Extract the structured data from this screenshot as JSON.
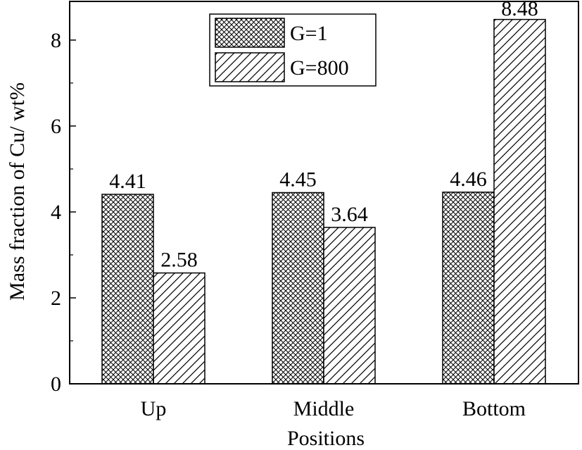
{
  "chart_data": {
    "type": "bar",
    "categories": [
      "Up",
      "Middle",
      "Bottom"
    ],
    "series": [
      {
        "name": "G=1",
        "values": [
          4.41,
          4.45,
          4.46
        ],
        "labels": [
          "4.41",
          "4.45",
          "4.46"
        ],
        "pattern": "crosshatch"
      },
      {
        "name": "G=800",
        "values": [
          2.58,
          3.64,
          8.48
        ],
        "labels": [
          "2.58",
          "3.64",
          "8.48"
        ],
        "pattern": "diagonal"
      }
    ],
    "title": "",
    "xlabel": "Positions",
    "ylabel": "Mass fraction of Cu/ wt%",
    "ylim": [
      0,
      8.9
    ],
    "yticks": [
      0,
      2,
      4,
      6,
      8
    ],
    "ytick_labels": [
      "0",
      "2",
      "4",
      "6",
      "8"
    ],
    "legend_position": "top-center",
    "grid": false,
    "colors": {
      "bar_edge": "#000000",
      "hatch": "#000000",
      "background": "#ffffff"
    }
  }
}
